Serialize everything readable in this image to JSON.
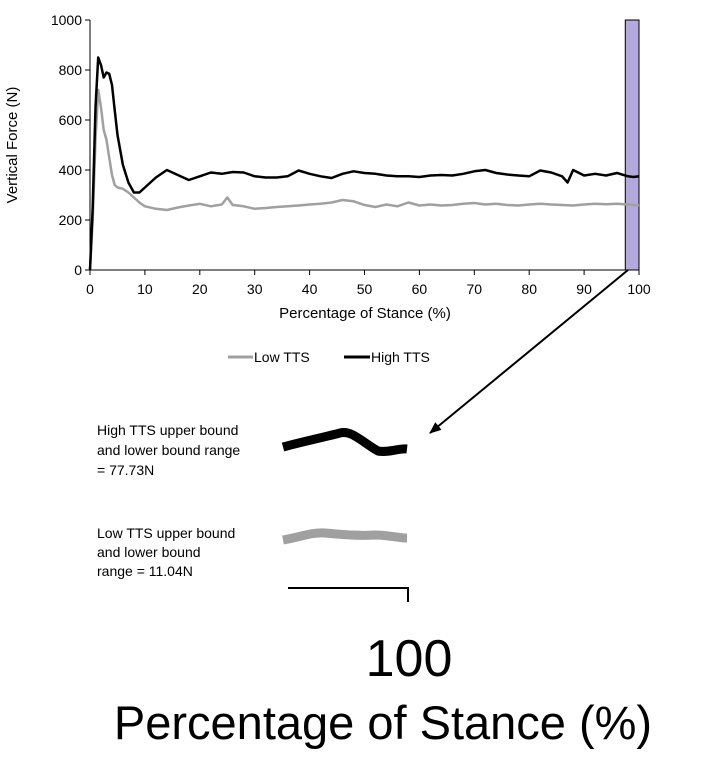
{
  "chart_data": {
    "type": "line",
    "title": "",
    "xlabel": "Percentage of Stance (%)",
    "ylabel": "Vertical Force (N)",
    "xlim": [
      0,
      100
    ],
    "ylim": [
      0,
      1000
    ],
    "x_ticks": [
      0,
      10,
      20,
      30,
      40,
      50,
      60,
      70,
      80,
      90,
      100
    ],
    "y_ticks": [
      0,
      200,
      400,
      600,
      800,
      1000
    ],
    "grid": false,
    "legend_position": "bottom",
    "highlight_region": [
      97.5,
      100
    ],
    "series": [
      {
        "name": "Low TTS",
        "color": "#a0a0a0",
        "x": [
          0,
          0.5,
          1,
          1.5,
          2,
          2.5,
          3,
          3.5,
          4,
          4.5,
          5,
          6,
          7,
          8,
          9,
          10,
          12,
          14,
          16,
          18,
          20,
          22,
          24,
          25,
          26,
          28,
          30,
          32,
          34,
          36,
          38,
          40,
          42,
          44,
          46,
          48,
          50,
          52,
          54,
          56,
          58,
          60,
          62,
          64,
          66,
          68,
          70,
          72,
          74,
          76,
          78,
          80,
          82,
          84,
          86,
          88,
          90,
          92,
          94,
          96,
          98,
          100
        ],
        "values": [
          0,
          200,
          520,
          720,
          650,
          560,
          520,
          450,
          380,
          340,
          330,
          325,
          310,
          290,
          270,
          255,
          245,
          240,
          250,
          258,
          265,
          255,
          262,
          290,
          260,
          255,
          245,
          248,
          252,
          255,
          258,
          262,
          265,
          270,
          280,
          275,
          260,
          252,
          262,
          255,
          270,
          258,
          262,
          258,
          260,
          265,
          268,
          262,
          265,
          260,
          258,
          262,
          265,
          262,
          260,
          258,
          262,
          265,
          263,
          265,
          262,
          258
        ]
      },
      {
        "name": "High TTS",
        "color": "#000000",
        "x": [
          0,
          0.5,
          1,
          1.5,
          2,
          2.5,
          3,
          3.5,
          4,
          4.5,
          5,
          6,
          7,
          8,
          9,
          10,
          12,
          14,
          16,
          18,
          20,
          22,
          24,
          26,
          28,
          30,
          32,
          34,
          36,
          38,
          40,
          42,
          44,
          46,
          48,
          50,
          52,
          54,
          56,
          58,
          60,
          62,
          64,
          66,
          68,
          70,
          72,
          74,
          76,
          78,
          80,
          82,
          84,
          86,
          87,
          88,
          90,
          92,
          94,
          96,
          98,
          99,
          100
        ],
        "values": [
          0,
          250,
          650,
          850,
          820,
          770,
          790,
          785,
          740,
          640,
          540,
          420,
          350,
          310,
          310,
          330,
          370,
          400,
          380,
          360,
          375,
          390,
          385,
          392,
          390,
          375,
          370,
          370,
          375,
          398,
          385,
          375,
          368,
          385,
          395,
          388,
          385,
          378,
          375,
          375,
          372,
          378,
          380,
          378,
          385,
          395,
          400,
          388,
          382,
          378,
          375,
          398,
          390,
          375,
          350,
          400,
          378,
          385,
          378,
          388,
          375,
          372,
          375
        ]
      }
    ],
    "inset": {
      "range_label": "100",
      "xlabel": "Percentage of Stance (%)",
      "annotations": [
        "High TTS upper bound and lower bound range = 77.73N",
        "Low TTS upper bound and lower bound range = 11.04N"
      ]
    }
  },
  "notes": {
    "high_lines": [
      "High TTS upper bound",
      "and lower bound range",
      "= 77.73N"
    ],
    "low_lines": [
      "Low TTS upper bound",
      "and lower bound",
      "range = 11.04N"
    ]
  }
}
